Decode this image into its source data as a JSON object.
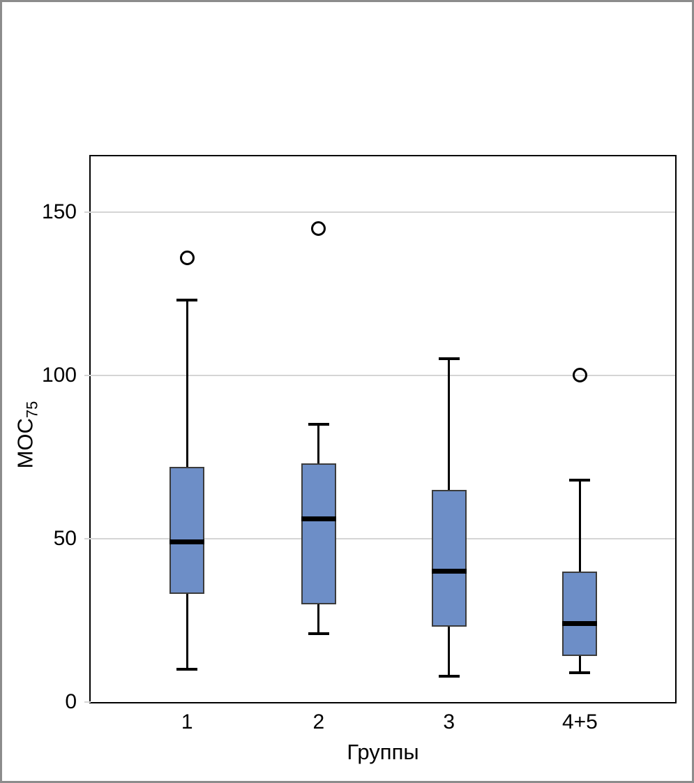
{
  "window": {
    "background": "#ffffff",
    "frame_border_color": "#8c8c8c"
  },
  "chart_data": {
    "type": "boxplot",
    "title": "",
    "xlabel": "Группы",
    "ylabel": "МОС",
    "ylabel_subscript": "75",
    "categories": [
      "1",
      "2",
      "3",
      "4+5"
    ],
    "ylim": [
      0,
      167
    ],
    "yticks": [
      0,
      50,
      100,
      150
    ],
    "grid": "horizontal",
    "legend": "none",
    "series": [
      {
        "category": "1",
        "min": 10,
        "q1": 33,
        "median": 49,
        "q3": 72,
        "max": 123,
        "outliers": [
          136
        ]
      },
      {
        "category": "2",
        "min": 21,
        "q1": 30,
        "median": 56,
        "q3": 73,
        "max": 85,
        "outliers": [
          145
        ]
      },
      {
        "category": "3",
        "min": 8,
        "q1": 23,
        "median": 40,
        "q3": 65,
        "max": 105,
        "outliers": []
      },
      {
        "category": "4+5",
        "min": 9,
        "q1": 14,
        "median": 24,
        "q3": 40,
        "max": 68,
        "outliers": [
          100
        ]
      }
    ],
    "colors": {
      "box_fill": "#6d8ec7",
      "box_border": "#3b3b3b",
      "median": "#000000",
      "whisker": "#000000",
      "outlier": "#000000",
      "gridline": "#d5d5d5",
      "plot_border": "#000000",
      "text": "#000000"
    }
  }
}
